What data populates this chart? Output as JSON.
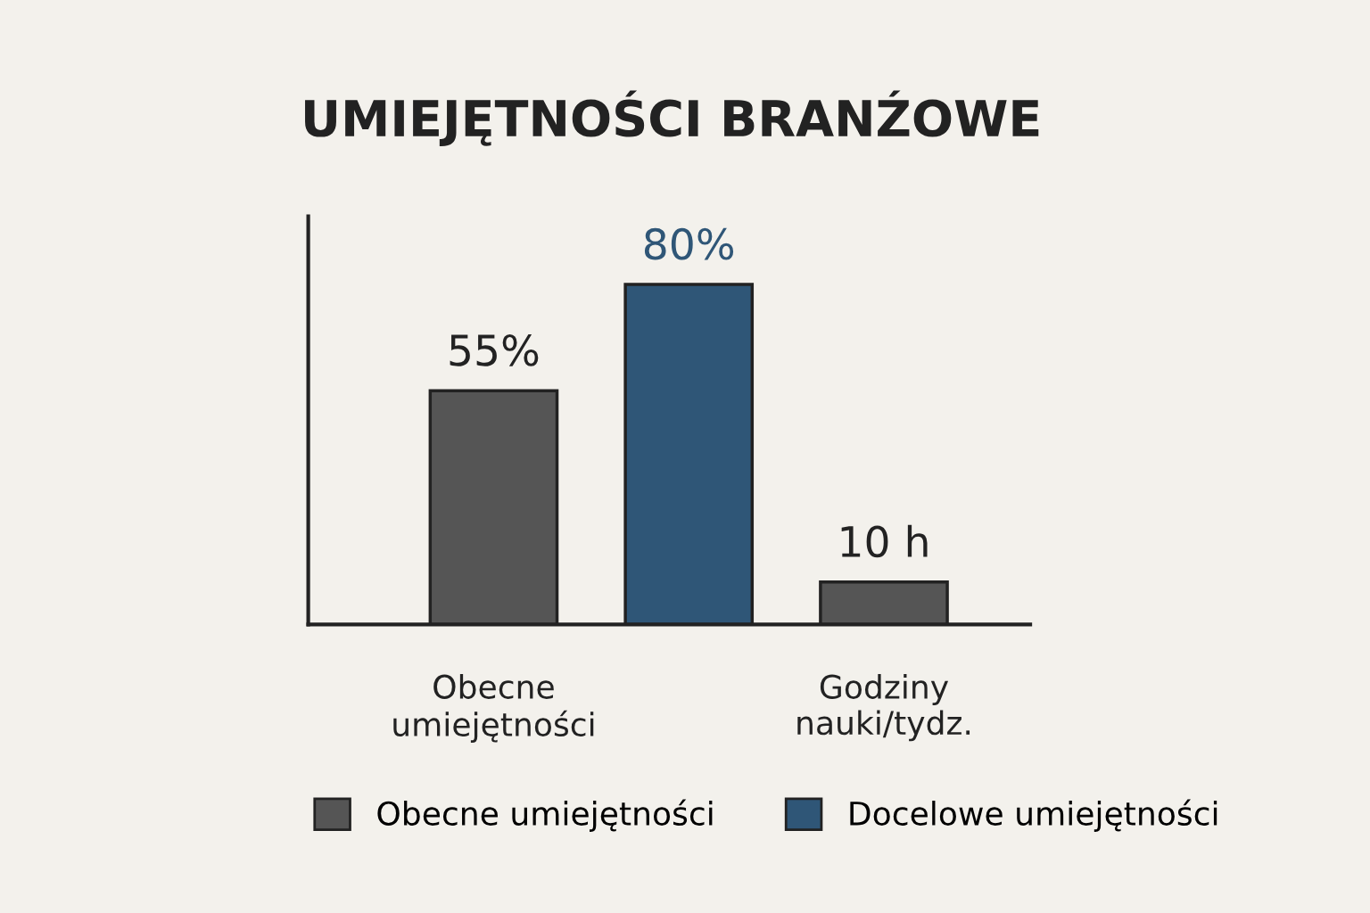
{
  "chart_data": {
    "type": "bar",
    "title": "UMIEJĘTNOŚCI BRANŹOWE",
    "categories": [
      "Obecne\numiejętności",
      null,
      "Godziny\nnauki/tydz."
    ],
    "series": [
      {
        "name": "Obecne umiejętności",
        "color": "#555555",
        "values": [
          55,
          null,
          10
        ],
        "value_labels": [
          "55%",
          null,
          "10 h"
        ]
      },
      {
        "name": "Docelowe umiejętności",
        "color": "#2f5677",
        "values": [
          null,
          80,
          null
        ],
        "value_labels": [
          null,
          "80%",
          null
        ]
      }
    ],
    "legend": "bottom",
    "grid": false,
    "tick_labels": "x"
  }
}
